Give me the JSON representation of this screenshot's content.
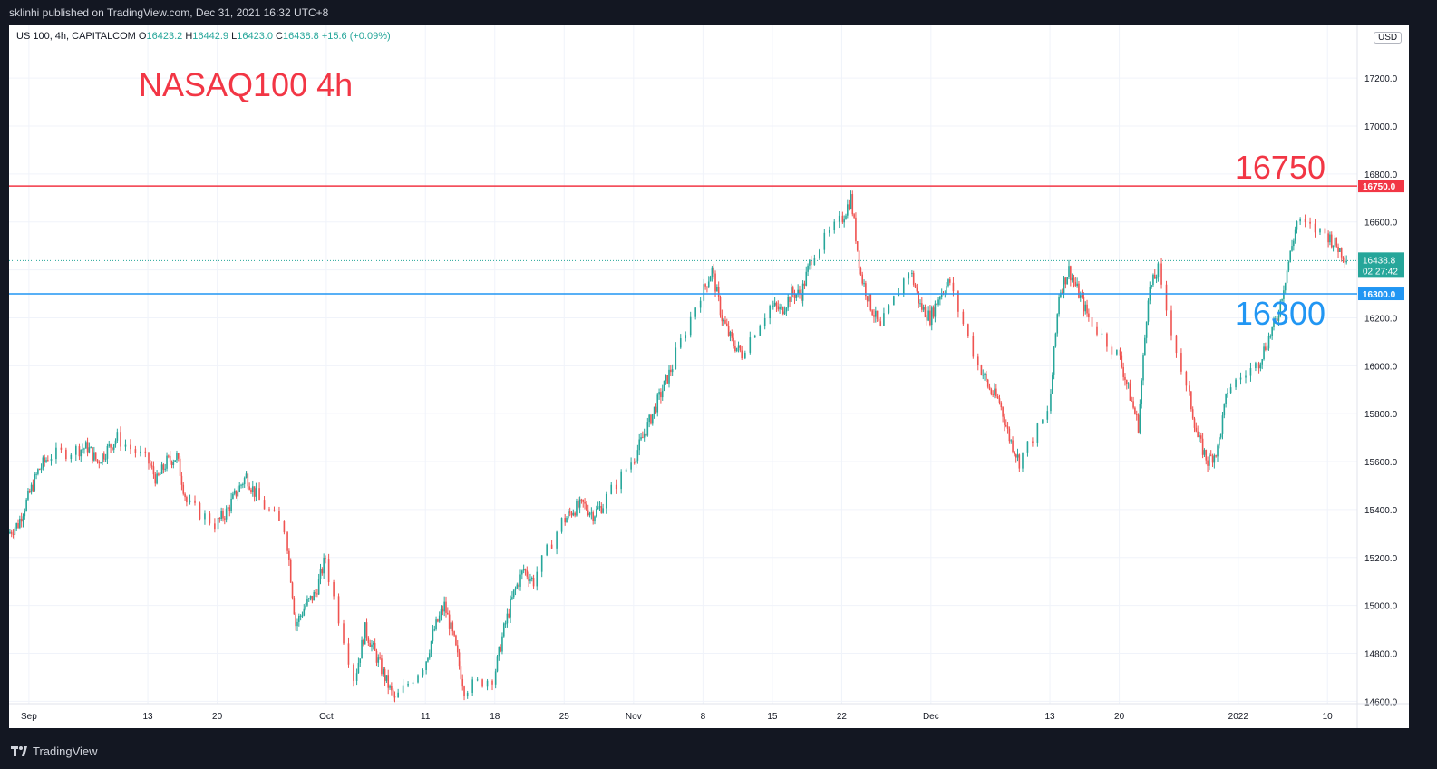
{
  "header": {
    "publish_info": "sklinhi published on TradingView.com, Dec 31, 2021 16:32 UTC+8"
  },
  "legend": {
    "symbol": "US 100, 4h, CAPITALCOM",
    "o_label": "O",
    "o": "16423.2",
    "h_label": "H",
    "h": "16442.9",
    "l_label": "L",
    "l": "16423.0",
    "c_label": "C",
    "c": "16438.8",
    "change": "+15.6 (+0.09%)"
  },
  "currency_button": "USD",
  "footer": {
    "brand": "TradingView"
  },
  "colors": {
    "up": "#26a69a",
    "down": "#ef5350",
    "resistance": "#f23645",
    "support": "#2196f3",
    "annotation_title": "#f23645",
    "price_label_bg": "#26a69a"
  },
  "icons": {
    "brand_logo": "tradingview-logo-icon"
  },
  "chart_data": {
    "type": "candlestick",
    "title": "NASAQ100 4h",
    "y_axis": {
      "ticks": [
        14600,
        14800,
        15000,
        15200,
        15400,
        15600,
        15800,
        16000,
        16200,
        16400,
        16600,
        16800,
        17000,
        17200
      ],
      "tick_labels": [
        "14600.0",
        "14800.0",
        "15000.0",
        "15200.0",
        "15400.0",
        "15600.0",
        "15800.0",
        "16000.0",
        "16200.0",
        "16400.0",
        "16600.0",
        "16800.0",
        "17000.0",
        "17200.0"
      ],
      "ylim": [
        14590,
        17420
      ],
      "position": "right"
    },
    "x_axis": {
      "labels": [
        "Sep",
        "13",
        "20",
        "Oct",
        "11",
        "18",
        "25",
        "Nov",
        "8",
        "15",
        "22",
        "Dec",
        "13",
        "20",
        "2022",
        "10"
      ],
      "dates": [
        "2021-09-01",
        "2021-09-13",
        "2021-09-20",
        "2021-10-01",
        "2021-10-11",
        "2021-10-18",
        "2021-10-25",
        "2021-11-01",
        "2021-11-08",
        "2021-11-15",
        "2021-11-22",
        "2021-12-01",
        "2021-12-13",
        "2021-12-20",
        "2022-01-01",
        "2022-01-10"
      ],
      "xlim": [
        "2021-08-30",
        "2022-01-13"
      ]
    },
    "grid": true,
    "horizontal_lines": [
      {
        "value": 16750,
        "label": "16750",
        "axis_label": "16750.0",
        "color": "#f23645"
      },
      {
        "value": 16300,
        "label": "16300",
        "axis_label": "16300.0",
        "color": "#2196f3"
      }
    ],
    "last_price": {
      "value": 16438.8,
      "label": "16438.8",
      "countdown": "02:27:42"
    },
    "close_series": [
      [
        "2021-08-30",
        15300
      ],
      [
        "2021-08-31",
        15340
      ],
      [
        "2021-09-01",
        15450
      ],
      [
        "2021-09-02",
        15560
      ],
      [
        "2021-09-03",
        15620
      ],
      [
        "2021-09-06",
        15650
      ],
      [
        "2021-09-07",
        15660
      ],
      [
        "2021-09-08",
        15600
      ],
      [
        "2021-09-09",
        15650
      ],
      [
        "2021-09-10",
        15700
      ],
      [
        "2021-09-13",
        15610
      ],
      [
        "2021-09-14",
        15520
      ],
      [
        "2021-09-15",
        15600
      ],
      [
        "2021-09-16",
        15620
      ],
      [
        "2021-09-17",
        15430
      ],
      [
        "2021-09-20",
        15340
      ],
      [
        "2021-09-21",
        15390
      ],
      [
        "2021-09-22",
        15470
      ],
      [
        "2021-09-23",
        15540
      ],
      [
        "2021-09-24",
        15460
      ],
      [
        "2021-09-27",
        15320
      ],
      [
        "2021-09-28",
        14920
      ],
      [
        "2021-09-29",
        15000
      ],
      [
        "2021-09-30",
        15050
      ],
      [
        "2021-10-01",
        15200
      ],
      [
        "2021-10-04",
        14700
      ],
      [
        "2021-10-05",
        14900
      ],
      [
        "2021-10-06",
        14800
      ],
      [
        "2021-10-07",
        14700
      ],
      [
        "2021-10-08",
        14600
      ],
      [
        "2021-10-11",
        14750
      ],
      [
        "2021-10-12",
        14900
      ],
      [
        "2021-10-13",
        15000
      ],
      [
        "2021-10-14",
        14850
      ],
      [
        "2021-10-15",
        14650
      ],
      [
        "2021-10-18",
        14700
      ],
      [
        "2021-10-19",
        14900
      ],
      [
        "2021-10-20",
        15050
      ],
      [
        "2021-10-21",
        15150
      ],
      [
        "2021-10-22",
        15100
      ],
      [
        "2021-10-25",
        15350
      ],
      [
        "2021-10-26",
        15400
      ],
      [
        "2021-10-27",
        15420
      ],
      [
        "2021-10-28",
        15380
      ],
      [
        "2021-10-29",
        15420
      ],
      [
        "2021-11-01",
        15600
      ],
      [
        "2021-11-02",
        15700
      ],
      [
        "2021-11-03",
        15800
      ],
      [
        "2021-11-04",
        15900
      ],
      [
        "2021-11-05",
        16000
      ],
      [
        "2021-11-08",
        16300
      ],
      [
        "2021-11-09",
        16400
      ],
      [
        "2021-11-10",
        16200
      ],
      [
        "2021-11-11",
        16100
      ],
      [
        "2021-11-12",
        16050
      ],
      [
        "2021-11-15",
        16250
      ],
      [
        "2021-11-16",
        16230
      ],
      [
        "2021-11-17",
        16300
      ],
      [
        "2021-11-18",
        16300
      ],
      [
        "2021-11-19",
        16450
      ],
      [
        "2021-11-22",
        16600
      ],
      [
        "2021-11-23",
        16700
      ],
      [
        "2021-11-24",
        16380
      ],
      [
        "2021-11-25",
        16250
      ],
      [
        "2021-11-26",
        16150
      ],
      [
        "2021-11-29",
        16400
      ],
      [
        "2021-11-30",
        16250
      ],
      [
        "2021-12-01",
        16200
      ],
      [
        "2021-12-02",
        16300
      ],
      [
        "2021-12-03",
        16350
      ],
      [
        "2021-12-06",
        16000
      ],
      [
        "2021-12-07",
        15900
      ],
      [
        "2021-12-08",
        15850
      ],
      [
        "2021-12-09",
        15700
      ],
      [
        "2021-12-10",
        15600
      ],
      [
        "2021-12-13",
        15800
      ],
      [
        "2021-12-14",
        16300
      ],
      [
        "2021-12-15",
        16400
      ],
      [
        "2021-12-16",
        16300
      ],
      [
        "2021-12-17",
        16200
      ],
      [
        "2021-12-20",
        16050
      ],
      [
        "2021-12-21",
        15900
      ],
      [
        "2021-12-22",
        15750
      ],
      [
        "2021-12-23",
        16300
      ],
      [
        "2021-12-24",
        16400
      ],
      [
        "2021-12-27",
        15900
      ],
      [
        "2021-12-28",
        15700
      ],
      [
        "2021-12-29",
        15600
      ],
      [
        "2021-12-30",
        15650
      ],
      [
        "2021-12-31",
        15900
      ],
      [
        "2022-01-03",
        16000
      ],
      [
        "2022-01-04",
        16100
      ],
      [
        "2022-01-05",
        16200
      ],
      [
        "2022-01-06",
        16400
      ],
      [
        "2022-01-07",
        16600
      ],
      [
        "2022-01-10",
        16550
      ],
      [
        "2022-01-11",
        16500
      ],
      [
        "2022-01-12",
        16450
      ]
    ]
  }
}
